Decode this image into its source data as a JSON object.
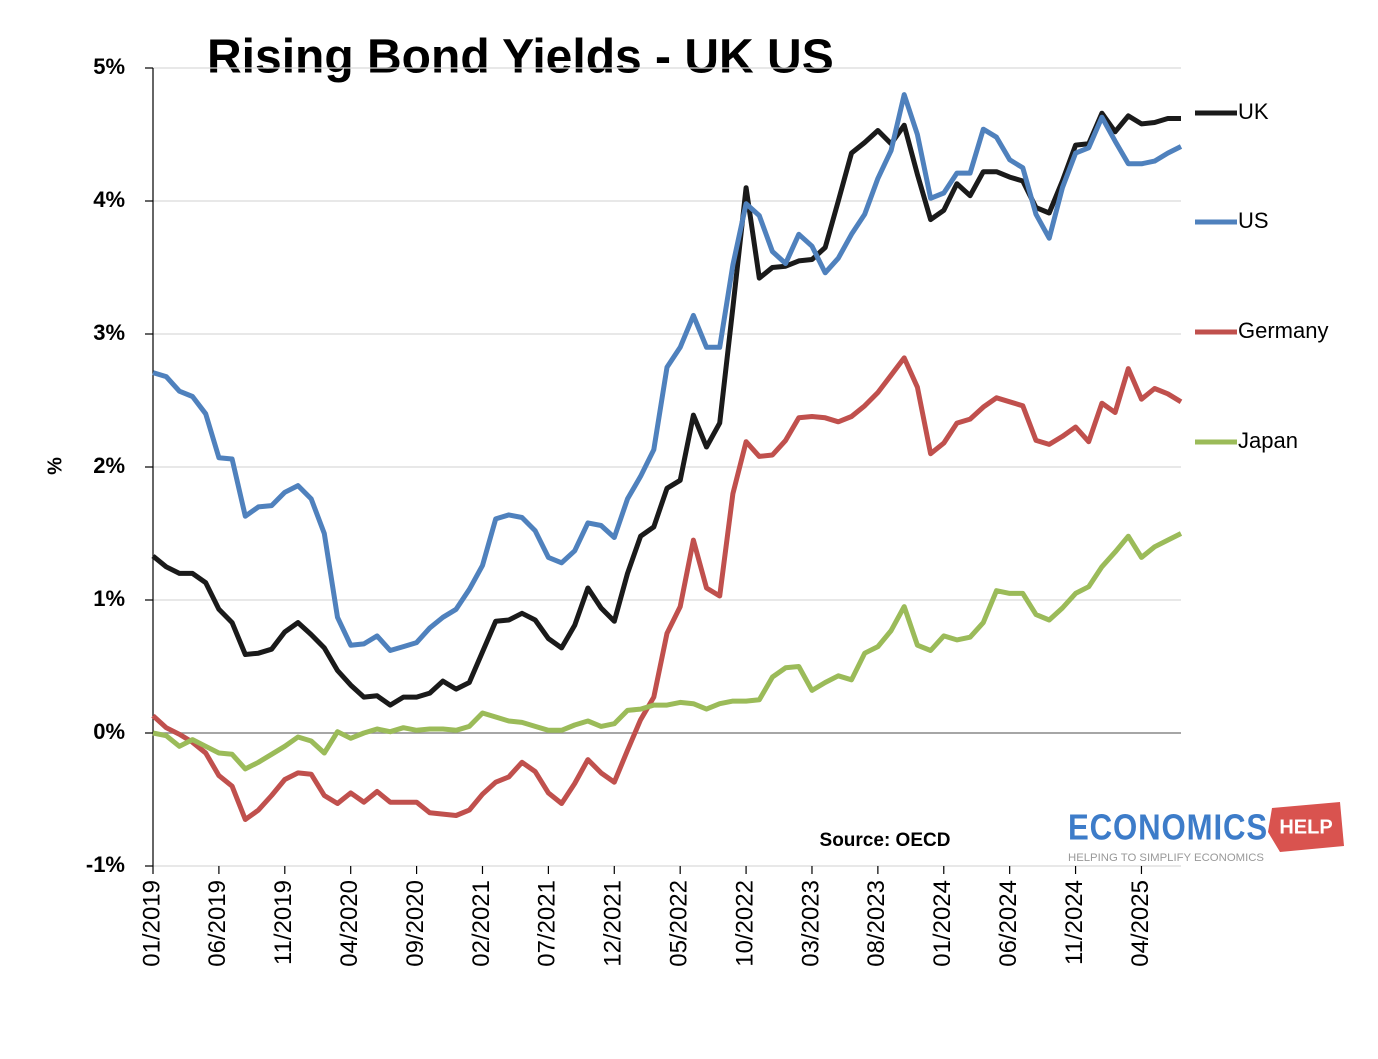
{
  "chart_data": {
    "type": "line",
    "title": "Rising Bond Yields - UK US",
    "y_label": "%",
    "source": "Source: OECD",
    "logo": {
      "name": "ECONOMICS",
      "badge": "HELP",
      "tagline": "HELPING TO SIMPLIFY ECONOMICS"
    },
    "categories": [
      "01/2019",
      null,
      null,
      null,
      null,
      "06/2019",
      null,
      null,
      null,
      null,
      "11/2019",
      null,
      null,
      null,
      null,
      "04/2020",
      null,
      null,
      null,
      null,
      "09/2020",
      null,
      null,
      null,
      null,
      "02/2021",
      null,
      null,
      null,
      null,
      "07/2021",
      null,
      null,
      null,
      null,
      "12/2021",
      null,
      null,
      null,
      null,
      "05/2022",
      null,
      null,
      null,
      null,
      "10/2022",
      null,
      null,
      null,
      null,
      "03/2023",
      null,
      null,
      null,
      null,
      "08/2023",
      null,
      null,
      null,
      null,
      "01/2024",
      null,
      null,
      null,
      null,
      "06/2024",
      null,
      null,
      null,
      null,
      "11/2024",
      null,
      null,
      null,
      null,
      "04/2025",
      null,
      null,
      null
    ],
    "series": [
      {
        "name": "UK",
        "color": "#1a1a1a",
        "values": [
          1.33,
          1.25,
          1.2,
          1.2,
          1.13,
          0.93,
          0.83,
          0.59,
          0.6,
          0.63,
          0.76,
          0.83,
          0.74,
          0.64,
          0.47,
          0.36,
          0.27,
          0.28,
          0.21,
          0.27,
          0.27,
          0.3,
          0.39,
          0.33,
          0.38,
          0.61,
          0.84,
          0.85,
          0.9,
          0.85,
          0.71,
          0.64,
          0.81,
          1.09,
          0.94,
          0.84,
          1.2,
          1.48,
          1.55,
          1.84,
          1.9,
          2.39,
          2.15,
          2.33,
          3.2,
          4.1,
          3.42,
          3.5,
          3.51,
          3.55,
          3.56,
          3.65,
          4.0,
          4.36,
          4.44,
          4.53,
          4.43,
          4.57,
          4.2,
          3.86,
          3.93,
          4.13,
          4.04,
          4.22,
          4.22,
          4.18,
          4.15,
          3.95,
          3.91,
          4.15,
          4.42,
          4.43,
          4.66,
          4.52,
          4.64,
          4.58,
          4.59,
          4.62,
          4.62
        ]
      },
      {
        "name": "US",
        "color": "#4f81bd",
        "values": [
          2.71,
          2.68,
          2.57,
          2.53,
          2.4,
          2.07,
          2.06,
          1.63,
          1.7,
          1.71,
          1.81,
          1.86,
          1.76,
          1.5,
          0.87,
          0.66,
          0.67,
          0.73,
          0.62,
          0.65,
          0.68,
          0.79,
          0.87,
          0.93,
          1.08,
          1.26,
          1.61,
          1.64,
          1.62,
          1.52,
          1.32,
          1.28,
          1.37,
          1.58,
          1.56,
          1.47,
          1.76,
          1.93,
          2.13,
          2.75,
          2.9,
          3.14,
          2.9,
          2.9,
          3.52,
          3.98,
          3.89,
          3.62,
          3.53,
          3.75,
          3.66,
          3.46,
          3.57,
          3.75,
          3.9,
          4.17,
          4.38,
          4.8,
          4.5,
          4.02,
          4.06,
          4.21,
          4.21,
          4.54,
          4.48,
          4.31,
          4.25,
          3.9,
          3.72,
          4.1,
          4.36,
          4.4,
          4.63,
          4.45,
          4.28,
          4.28,
          4.3,
          4.36,
          4.41
        ]
      },
      {
        "name": "Germany",
        "color": "#c0504d",
        "values": [
          0.13,
          0.04,
          -0.01,
          -0.07,
          -0.15,
          -0.32,
          -0.4,
          -0.65,
          -0.58,
          -0.47,
          -0.35,
          -0.3,
          -0.31,
          -0.47,
          -0.53,
          -0.45,
          -0.52,
          -0.44,
          -0.52,
          -0.52,
          -0.52,
          -0.6,
          -0.61,
          -0.62,
          -0.58,
          -0.46,
          -0.37,
          -0.33,
          -0.22,
          -0.29,
          -0.45,
          -0.53,
          -0.38,
          -0.2,
          -0.3,
          -0.37,
          -0.13,
          0.1,
          0.27,
          0.75,
          0.95,
          1.45,
          1.09,
          1.03,
          1.8,
          2.19,
          2.08,
          2.09,
          2.2,
          2.37,
          2.38,
          2.37,
          2.34,
          2.38,
          2.46,
          2.56,
          2.69,
          2.82,
          2.6,
          2.1,
          2.18,
          2.33,
          2.36,
          2.45,
          2.52,
          2.49,
          2.46,
          2.2,
          2.17,
          2.23,
          2.3,
          2.19,
          2.48,
          2.41,
          2.74,
          2.51,
          2.59,
          2.55,
          2.49
        ]
      },
      {
        "name": "Japan",
        "color": "#9bbb59",
        "values": [
          0.0,
          -0.02,
          -0.1,
          -0.05,
          -0.1,
          -0.15,
          -0.16,
          -0.27,
          -0.22,
          -0.16,
          -0.1,
          -0.03,
          -0.06,
          -0.15,
          0.01,
          -0.04,
          0.0,
          0.03,
          0.01,
          0.04,
          0.02,
          0.03,
          0.03,
          0.02,
          0.05,
          0.15,
          0.12,
          0.09,
          0.08,
          0.05,
          0.02,
          0.02,
          0.06,
          0.09,
          0.05,
          0.07,
          0.17,
          0.18,
          0.21,
          0.21,
          0.23,
          0.22,
          0.18,
          0.22,
          0.24,
          0.24,
          0.25,
          0.42,
          0.49,
          0.5,
          0.32,
          0.38,
          0.43,
          0.4,
          0.6,
          0.65,
          0.77,
          0.95,
          0.66,
          0.62,
          0.73,
          0.7,
          0.72,
          0.83,
          1.07,
          1.05,
          1.05,
          0.89,
          0.85,
          0.94,
          1.05,
          1.1,
          1.25,
          1.36,
          1.48,
          1.32,
          1.4,
          1.45,
          1.5
        ]
      }
    ],
    "ylim": [
      -1,
      5
    ],
    "yticks": [
      {
        "value": -1,
        "label": "-1%"
      },
      {
        "value": 0,
        "label": "0%"
      },
      {
        "value": 1,
        "label": "1%"
      },
      {
        "value": 2,
        "label": "2%"
      },
      {
        "value": 3,
        "label": "3%"
      },
      {
        "value": 4,
        "label": "4%"
      },
      {
        "value": 5,
        "label": "5%"
      }
    ],
    "grid": true,
    "legend": "right"
  }
}
